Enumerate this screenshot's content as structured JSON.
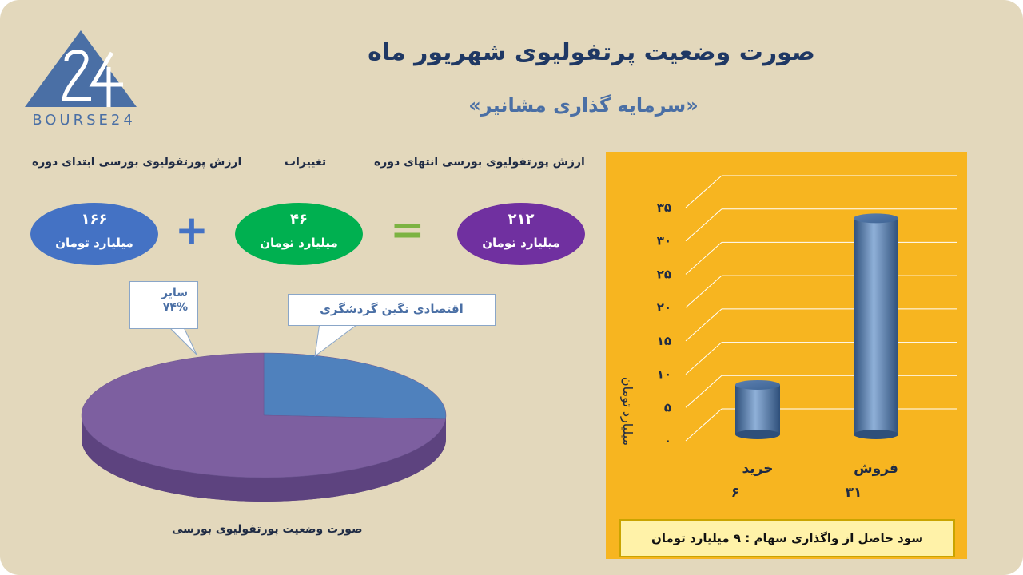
{
  "title": "صورت وضعیت پرتفولیوی شهریور ماه",
  "subtitle": "«سرمایه گذاری مشانیر»",
  "logo": {
    "text": "BOURSE24",
    "icon": "bourse24-logo-icon"
  },
  "equation": {
    "end_label": "ارزش پورتفولیوی بورسی انتهای دوره",
    "change_label": "تغییرات",
    "start_label": "ارزش پورتفولیوی بورسی ابتدای دوره",
    "end_value": "۲۱۲",
    "change_value": "۴۶",
    "start_value": "۱۶۶",
    "unit": "میلیارد تومان",
    "equals_symbol": "=",
    "plus_symbol": "+"
  },
  "pie": {
    "other_label": "سایر",
    "other_percent": "۷۴%",
    "tourism_label": "اقتصادی نگین گردشگری",
    "caption": "صورت وضعیت پورتفولیوی بورسی"
  },
  "colors": {
    "background": "#e3d8bc",
    "panel": "#f7b520",
    "purple": "#7030a0",
    "green": "#00b050",
    "blue": "#4472c4",
    "pie_purple": "#7d5fa0",
    "pie_blue": "#4f81bd"
  },
  "chart_data": [
    {
      "type": "pie",
      "slices": [
        {
          "name": "سایر",
          "value": 74
        },
        {
          "name": "اقتصادی نگین گردشگری",
          "value": 26
        }
      ],
      "title": "صورت وضعیت پورتفولیوی بورسی"
    },
    {
      "type": "bar",
      "categories": [
        "خرید",
        "فروش"
      ],
      "values": [
        6,
        31
      ],
      "value_labels": [
        "۶",
        "۳۱"
      ],
      "ylabel": "میلیارد تومان",
      "ylim": [
        0,
        35
      ],
      "yticks": [
        "۰",
        "۵",
        "۱۰",
        "۱۵",
        "۲۰",
        "۲۵",
        "۳۰",
        "۳۵"
      ],
      "grid": true
    }
  ],
  "footer_note": "سود حاصل از واگذاری سهام : ۹ میلیارد تومان"
}
